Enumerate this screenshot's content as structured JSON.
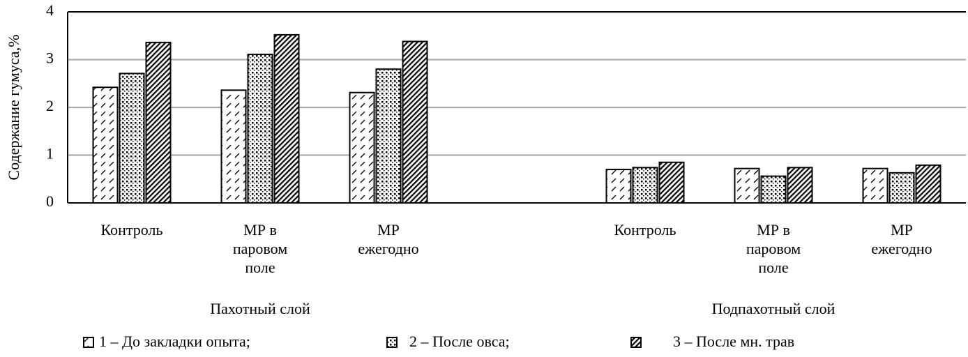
{
  "chart_data": {
    "type": "bar",
    "y_label": "Содержание гумуса,%",
    "categories": [
      "Контроль",
      "МР в паровом поле",
      "МР ежегодно",
      null,
      "Контроль",
      "МР в паровом поле",
      "МР ежегодно"
    ],
    "groups": [
      "Пахотный слой",
      "Подпахотный слой"
    ],
    "series": [
      {
        "name": "1 – До закладки опыта;",
        "color": "#000000",
        "pattern": "dashes",
        "values": [
          2.42,
          2.36,
          2.31,
          null,
          0.7,
          0.72,
          0.72
        ]
      },
      {
        "name": "2 – После овса;",
        "color": "#000000",
        "pattern": "dots",
        "values": [
          2.71,
          3.11,
          2.8,
          null,
          0.74,
          0.56,
          0.63
        ]
      },
      {
        "name": "3 – После мн. трав",
        "color": "#000000",
        "pattern": "hatch",
        "values": [
          3.36,
          3.52,
          3.38,
          null,
          0.85,
          0.74,
          0.79
        ]
      }
    ],
    "ylim": [
      0,
      4
    ],
    "yticks": [
      0,
      1,
      2,
      3,
      4
    ],
    "grid": true
  }
}
